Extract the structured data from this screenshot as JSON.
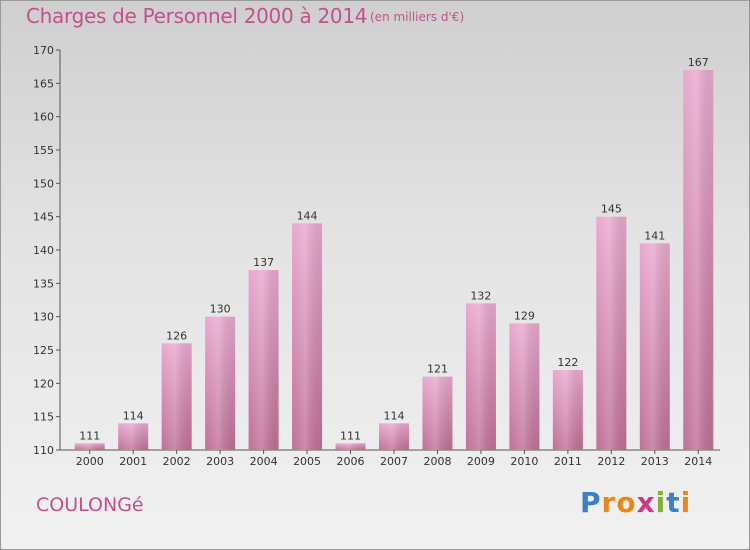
{
  "header": {
    "title": "Charges de Personnel 2000 à 2014",
    "subtitle": "(en milliers d'€)"
  },
  "footer": {
    "place": "COULONGé",
    "logo_letters": [
      "P",
      "r",
      "o",
      "x",
      "i",
      "t",
      "i"
    ],
    "logo_colors": [
      "#3a7fc8",
      "#e8891c",
      "#e8891c",
      "#c73b8b",
      "#7fb22e",
      "#3a7fc8",
      "#e8891c"
    ]
  },
  "colors": {
    "bar_light": "#e9a9cf",
    "bar_dark": "#c07098",
    "title": "#c4508c"
  },
  "chart_data": {
    "type": "bar",
    "categories": [
      "2000",
      "2001",
      "2002",
      "2003",
      "2004",
      "2005",
      "2006",
      "2007",
      "2008",
      "2009",
      "2010",
      "2011",
      "2012",
      "2013",
      "2014"
    ],
    "values": [
      111,
      114,
      126,
      130,
      137,
      144,
      111,
      114,
      121,
      132,
      129,
      122,
      145,
      141,
      167
    ],
    "ylim": [
      110,
      170
    ],
    "yticks": [
      110,
      115,
      120,
      125,
      130,
      135,
      140,
      145,
      150,
      155,
      160,
      165,
      170
    ],
    "grid": false,
    "xlabel": "",
    "ylabel": ""
  }
}
